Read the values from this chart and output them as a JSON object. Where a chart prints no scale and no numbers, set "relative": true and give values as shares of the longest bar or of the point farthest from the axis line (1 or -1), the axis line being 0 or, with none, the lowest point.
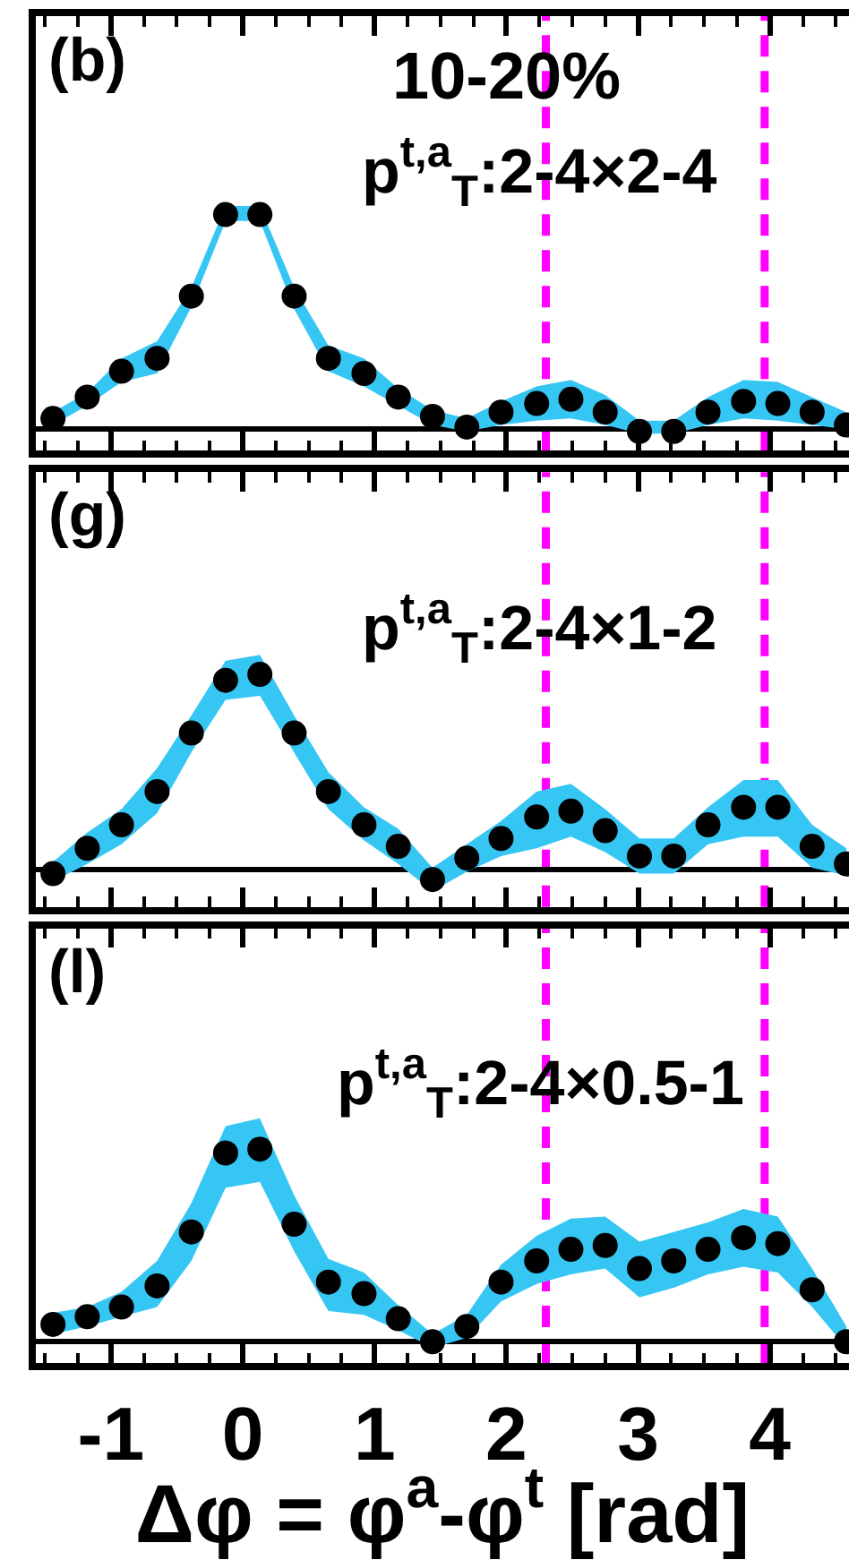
{
  "chart_data": [
    {
      "type": "scatter",
      "relative": true,
      "marker": "circle",
      "tick_labels": false,
      "xlim": [
        -1.57,
        4.6
      ],
      "xticks": [
        {
          "value": -1.5,
          "label": null
        },
        {
          "value": -1.25,
          "label": null
        },
        -1,
        {
          "value": -0.75,
          "label": null
        },
        {
          "value": -0.5,
          "label": null
        },
        {
          "value": -0.25,
          "label": null
        },
        0,
        {
          "value": 0.25,
          "label": null
        },
        {
          "value": 0.5,
          "label": null
        },
        {
          "value": 0.75,
          "label": null
        },
        1,
        {
          "value": 1.25,
          "label": null
        },
        {
          "value": 1.5,
          "label": null
        },
        {
          "value": 1.75,
          "label": null
        },
        2,
        {
          "value": 2.25,
          "label": null
        },
        {
          "value": 2.5,
          "label": null
        },
        {
          "value": 2.75,
          "label": null
        },
        3,
        {
          "value": 3.25,
          "label": null
        },
        {
          "value": 3.5,
          "label": null
        },
        {
          "value": 3.75,
          "label": null
        },
        4,
        {
          "value": 4.25,
          "label": null
        },
        {
          "value": 4.5,
          "label": null
        }
      ],
      "annotations": [
        "(b)",
        "10-20%",
        "p$^{t,a}$$_{T}$:2-4×2-4"
      ],
      "x": [
        -1.44,
        -1.18,
        -0.92,
        -0.65,
        -0.39,
        -0.13,
        0.13,
        0.39,
        0.65,
        0.92,
        1.18,
        1.44,
        1.7,
        1.96,
        2.23,
        2.49,
        2.75,
        3.01,
        3.27,
        3.53,
        3.8,
        4.06,
        4.32,
        4.58
      ],
      "series": [
        {
          "color": "#000000",
          "values": [
            0.05,
            0.15,
            0.27,
            0.33,
            0.62,
            1.0,
            1.0,
            0.62,
            0.33,
            0.26,
            0.15,
            0.06,
            0.01,
            0.08,
            0.12,
            0.14,
            0.08,
            -0.01,
            -0.01,
            0.08,
            0.13,
            0.12,
            0.08,
            0.02
          ],
          "upper": [
            0.08,
            0.17,
            0.33,
            0.41,
            0.66,
            1.04,
            1.04,
            0.66,
            0.39,
            0.33,
            0.19,
            0.09,
            0.05,
            0.13,
            0.2,
            0.23,
            0.16,
            0.04,
            0.04,
            0.15,
            0.23,
            0.22,
            0.15,
            0.08
          ],
          "lower": [
            0.02,
            0.11,
            0.22,
            0.26,
            0.57,
            0.97,
            0.97,
            0.56,
            0.27,
            0.2,
            0.11,
            0.02,
            -0.01,
            0.02,
            0.04,
            0.05,
            0.02,
            -0.02,
            -0.02,
            0.02,
            0.05,
            0.04,
            0.02,
            0.0
          ]
        }
      ],
      "ref_lines": [
        {
          "axis": "x",
          "value": 2.3,
          "color": "#ff00ff",
          "line_style": "dashed"
        },
        {
          "axis": "x",
          "value": 3.96,
          "color": "#ff00ff",
          "line_style": "dashed"
        }
      ]
    },
    {
      "type": "scatter",
      "relative": true,
      "marker": "circle",
      "tick_labels": false,
      "xlim": [
        -1.57,
        4.6
      ],
      "xticks": [
        {
          "value": -1.5,
          "label": null
        },
        {
          "value": -1.25,
          "label": null
        },
        -1,
        {
          "value": -0.75,
          "label": null
        },
        {
          "value": -0.5,
          "label": null
        },
        {
          "value": -0.25,
          "label": null
        },
        0,
        {
          "value": 0.25,
          "label": null
        },
        {
          "value": 0.5,
          "label": null
        },
        {
          "value": 0.75,
          "label": null
        },
        1,
        {
          "value": 1.25,
          "label": null
        },
        {
          "value": 1.5,
          "label": null
        },
        {
          "value": 1.75,
          "label": null
        },
        2,
        {
          "value": 2.25,
          "label": null
        },
        {
          "value": 2.5,
          "label": null
        },
        {
          "value": 2.75,
          "label": null
        },
        3,
        {
          "value": 3.25,
          "label": null
        },
        {
          "value": 3.5,
          "label": null
        },
        {
          "value": 3.75,
          "label": null
        },
        4,
        {
          "value": 4.25,
          "label": null
        },
        {
          "value": 4.5,
          "label": null
        }
      ],
      "annotations": [
        "(g)",
        "p$^{t,a}$$_{T}$:2-4×1-2"
      ],
      "x": [
        -1.44,
        -1.18,
        -0.92,
        -0.65,
        -0.39,
        -0.13,
        0.13,
        0.39,
        0.65,
        0.92,
        1.18,
        1.44,
        1.7,
        1.96,
        2.23,
        2.49,
        2.75,
        3.01,
        3.27,
        3.53,
        3.8,
        4.06,
        4.32,
        4.58
      ],
      "series": [
        {
          "color": "#000000",
          "values": [
            -0.02,
            0.11,
            0.23,
            0.4,
            0.7,
            0.97,
            1.0,
            0.7,
            0.4,
            0.23,
            0.12,
            -0.05,
            0.06,
            0.16,
            0.27,
            0.3,
            0.2,
            0.07,
            0.07,
            0.23,
            0.32,
            0.32,
            0.12,
            0.03
          ],
          "upper": [
            0.04,
            0.19,
            0.31,
            0.52,
            0.79,
            1.07,
            1.1,
            0.79,
            0.5,
            0.32,
            0.21,
            0.01,
            0.13,
            0.25,
            0.4,
            0.44,
            0.31,
            0.16,
            0.16,
            0.32,
            0.46,
            0.46,
            0.23,
            0.11
          ],
          "lower": [
            -0.06,
            0.03,
            0.13,
            0.29,
            0.6,
            0.87,
            0.89,
            0.6,
            0.31,
            0.15,
            0.03,
            -0.11,
            -0.01,
            0.07,
            0.11,
            0.17,
            0.09,
            -0.02,
            -0.02,
            0.13,
            0.17,
            0.17,
            0.01,
            -0.03
          ]
        }
      ],
      "ref_lines": [
        {
          "axis": "x",
          "value": 2.3,
          "color": "#ff00ff",
          "line_style": "dashed"
        },
        {
          "axis": "x",
          "value": 3.96,
          "color": "#ff00ff",
          "line_style": "dashed"
        }
      ]
    },
    {
      "type": "scatter",
      "relative": true,
      "marker": "circle",
      "tick_labels": "x",
      "xlim": [
        -1.57,
        4.6
      ],
      "xticks": [
        {
          "value": -1.5,
          "label": null
        },
        {
          "value": -1.25,
          "label": null
        },
        -1,
        {
          "value": -0.75,
          "label": null
        },
        {
          "value": -0.5,
          "label": null
        },
        {
          "value": -0.25,
          "label": null
        },
        0,
        {
          "value": 0.25,
          "label": null
        },
        {
          "value": 0.5,
          "label": null
        },
        {
          "value": 0.75,
          "label": null
        },
        1,
        {
          "value": 1.25,
          "label": null
        },
        {
          "value": 1.5,
          "label": null
        },
        {
          "value": 1.75,
          "label": null
        },
        2,
        {
          "value": 2.25,
          "label": null
        },
        {
          "value": 2.5,
          "label": null
        },
        {
          "value": 2.75,
          "label": null
        },
        3,
        {
          "value": 3.25,
          "label": null
        },
        {
          "value": 3.5,
          "label": null
        },
        {
          "value": 3.75,
          "label": null
        },
        4,
        {
          "value": 4.25,
          "label": null
        },
        {
          "value": 4.5,
          "label": null
        }
      ],
      "xlabel": "Δφ = φ$^{a}$-φ$^{t}$ [rad]",
      "annotations": [
        "(l)",
        "p$^{t,a}$$_{T}$:2-4×0.5-1"
      ],
      "x": [
        -1.44,
        -1.18,
        -0.92,
        -0.65,
        -0.39,
        -0.13,
        0.13,
        0.39,
        0.65,
        0.92,
        1.18,
        1.44,
        1.7,
        1.96,
        2.23,
        2.49,
        2.75,
        3.01,
        3.27,
        3.53,
        3.8,
        4.06,
        4.32,
        4.58
      ],
      "series": [
        {
          "color": "#000000",
          "values": [
            0.09,
            0.13,
            0.18,
            0.29,
            0.57,
            0.98,
            1.0,
            0.61,
            0.31,
            0.25,
            0.12,
            0.0,
            0.08,
            0.31,
            0.42,
            0.48,
            0.5,
            0.38,
            0.42,
            0.48,
            0.54,
            0.51,
            0.27,
            0.0
          ],
          "upper": [
            0.15,
            0.18,
            0.26,
            0.42,
            0.72,
            1.12,
            1.16,
            0.76,
            0.43,
            0.36,
            0.19,
            0.04,
            0.14,
            0.4,
            0.55,
            0.64,
            0.65,
            0.52,
            0.57,
            0.62,
            0.69,
            0.65,
            0.38,
            0.08
          ],
          "lower": [
            0.04,
            0.08,
            0.13,
            0.18,
            0.42,
            0.8,
            0.83,
            0.47,
            0.16,
            0.14,
            0.06,
            -0.03,
            0.02,
            0.21,
            0.3,
            0.35,
            0.38,
            0.23,
            0.28,
            0.35,
            0.39,
            0.36,
            0.18,
            -0.03
          ]
        }
      ],
      "ref_lines": [
        {
          "axis": "x",
          "value": 2.3,
          "color": "#ff00ff",
          "line_style": "dashed"
        },
        {
          "axis": "x",
          "value": 3.96,
          "color": "#ff00ff",
          "line_style": "dashed"
        }
      ]
    }
  ]
}
